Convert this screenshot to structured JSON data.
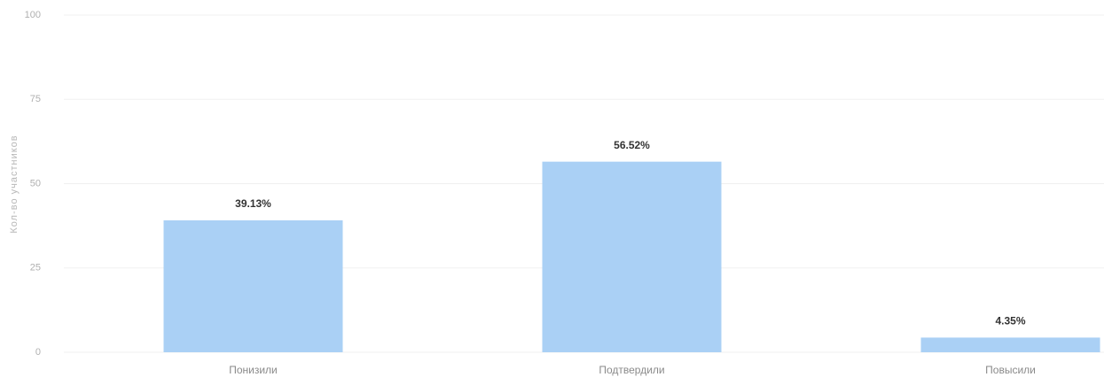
{
  "chart_data": {
    "type": "bar",
    "y_label": "Кол-во участников",
    "categories": [
      "Понизили",
      "Подтвердили",
      "Повысили"
    ],
    "values": [
      39.13,
      56.52,
      4.35
    ],
    "value_labels": [
      "39.13%",
      "56.52%",
      "4.35%"
    ],
    "color": "#aad0f5",
    "ylim": [
      0,
      100
    ],
    "yticks": [
      0,
      25,
      50,
      75,
      100
    ],
    "grid": true
  }
}
